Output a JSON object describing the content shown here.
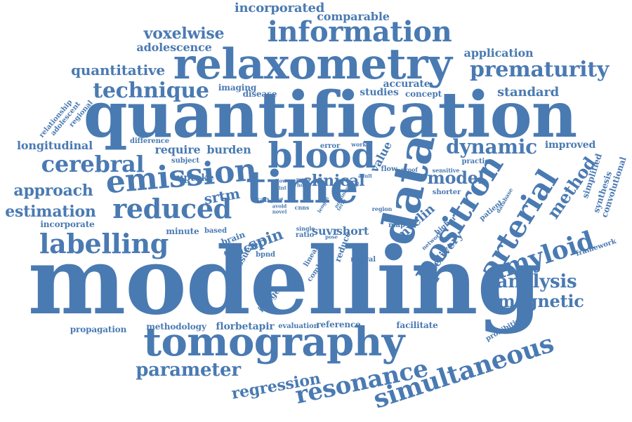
{
  "colors": {
    "word": "#4a7ab2",
    "background": "#ffffff"
  },
  "words": [
    {
      "key": "modelling",
      "text": "modelling"
    },
    {
      "key": "quantification",
      "text": "quantification"
    },
    {
      "key": "relaxometry",
      "text": "relaxometry"
    },
    {
      "key": "tomography",
      "text": "tomography"
    },
    {
      "key": "data",
      "text": "data"
    },
    {
      "key": "time",
      "text": "time"
    },
    {
      "key": "information",
      "text": "information"
    },
    {
      "key": "emission",
      "text": "emission"
    },
    {
      "key": "blood",
      "text": "blood"
    },
    {
      "key": "reduced",
      "text": "reduced"
    },
    {
      "key": "positron",
      "text": "positron"
    },
    {
      "key": "arterial",
      "text": "arterial"
    },
    {
      "key": "simultaneous",
      "text": "simultaneous"
    },
    {
      "key": "amyloid",
      "text": "amyloid"
    },
    {
      "key": "prematurity",
      "text": "prematurity"
    },
    {
      "key": "labelling",
      "text": "labelling"
    },
    {
      "key": "resonance",
      "text": "resonance"
    },
    {
      "key": "cerebral",
      "text": "cerebral"
    },
    {
      "key": "technique",
      "text": "technique"
    },
    {
      "key": "dynamic",
      "text": "dynamic"
    },
    {
      "key": "analysis",
      "text": "analysis"
    },
    {
      "key": "magnetic",
      "text": "magnetic"
    },
    {
      "key": "parameter",
      "text": "parameter"
    },
    {
      "key": "regression",
      "text": "regression"
    },
    {
      "key": "method",
      "text": "method"
    },
    {
      "key": "model",
      "text": "model"
    },
    {
      "key": "approach",
      "text": "approach"
    },
    {
      "key": "estimation",
      "text": "estimation"
    },
    {
      "key": "voxelwise",
      "text": "voxelwise"
    },
    {
      "key": "quantitative",
      "text": "quantitative"
    },
    {
      "key": "clinical",
      "text": "clinical"
    },
    {
      "key": "standard",
      "text": "standard"
    },
    {
      "key": "incorporated",
      "text": "incorporated"
    },
    {
      "key": "comparable",
      "text": "comparable"
    },
    {
      "key": "adolescence",
      "text": "adolescence"
    },
    {
      "key": "application",
      "text": "application"
    },
    {
      "key": "longitudinal",
      "text": "longitudinal"
    },
    {
      "key": "spin",
      "text": "spin"
    },
    {
      "key": "srtm",
      "text": "srtm"
    },
    {
      "key": "myelin",
      "text": "myelin"
    },
    {
      "key": "delivery",
      "text": "delivery"
    },
    {
      "key": "tracer",
      "text": "tracer"
    },
    {
      "key": "short",
      "text": "short"
    },
    {
      "key": "suvr",
      "text": "suvr"
    },
    {
      "key": "require",
      "text": "require"
    },
    {
      "key": "burden",
      "text": "burden"
    },
    {
      "key": "uptake",
      "text": "uptake"
    },
    {
      "key": "value",
      "text": "value"
    },
    {
      "key": "improved",
      "text": "improved"
    },
    {
      "key": "accurate",
      "text": "accurate"
    },
    {
      "key": "studies",
      "text": "studies"
    },
    {
      "key": "concept",
      "text": "concept"
    },
    {
      "key": "imaging",
      "text": "imaging"
    },
    {
      "key": "disease",
      "text": "disease"
    },
    {
      "key": "florbetapir",
      "text": "florbetapir"
    },
    {
      "key": "methodology",
      "text": "methodology"
    },
    {
      "key": "reference",
      "text": "reference"
    },
    {
      "key": "facilitate",
      "text": "facilitate"
    },
    {
      "key": "propagation",
      "text": "propagation"
    },
    {
      "key": "evaluation",
      "text": "evaluation"
    },
    {
      "key": "incorporate",
      "text": "incorporate"
    },
    {
      "key": "minute",
      "text": "minute"
    },
    {
      "key": "based",
      "text": "based"
    },
    {
      "key": "brain",
      "text": "brain"
    },
    {
      "key": "tissue",
      "text": "tissue"
    },
    {
      "key": "bpnd",
      "text": "bpnd"
    },
    {
      "key": "image",
      "text": "image"
    },
    {
      "key": "reduce",
      "text": "reduce"
    },
    {
      "key": "neural",
      "text": "neural"
    },
    {
      "key": "map",
      "text": "map"
    },
    {
      "key": "linear",
      "text": "linear"
    },
    {
      "key": "combine",
      "text": "combine"
    },
    {
      "key": "ratio",
      "text": "ratio"
    },
    {
      "key": "single",
      "text": "single"
    },
    {
      "key": "scan",
      "text": "scan"
    },
    {
      "key": "cnns",
      "text": "cnns"
    },
    {
      "key": "error",
      "text": "error"
    },
    {
      "key": "flow",
      "text": "flow"
    },
    {
      "key": "work",
      "text": "work"
    },
    {
      "key": "proof",
      "text": "proof"
    },
    {
      "key": "practice",
      "text": "practice"
    },
    {
      "key": "sensitive",
      "text": "sensitive"
    },
    {
      "key": "shorter",
      "text": "shorter"
    },
    {
      "key": "study",
      "text": "study"
    },
    {
      "key": "region",
      "text": "region"
    },
    {
      "key": "patient",
      "text": "patient"
    },
    {
      "key": "database",
      "text": "database"
    },
    {
      "key": "network",
      "text": "network"
    },
    {
      "key": "higher",
      "text": "higher"
    },
    {
      "key": "simplified",
      "text": "simplified"
    },
    {
      "key": "synthesis",
      "text": "synthesis"
    },
    {
      "key": "convolutional",
      "text": "convolutional"
    },
    {
      "key": "framework",
      "text": "framework"
    },
    {
      "key": "prohibitive",
      "text": "prohibitive"
    },
    {
      "key": "relationship",
      "text": "relationship"
    },
    {
      "key": "adolescent",
      "text": "adolescent"
    },
    {
      "key": "regional",
      "text": "regional"
    },
    {
      "key": "difference",
      "text": "difference"
    },
    {
      "key": "subject",
      "text": "subject"
    },
    {
      "key": "allow",
      "text": "allow"
    },
    {
      "key": "joint",
      "text": "joint"
    },
    {
      "key": "show",
      "text": "show"
    },
    {
      "key": "avoid",
      "text": "avoid"
    },
    {
      "key": "novel",
      "text": "novel"
    },
    {
      "key": "many",
      "text": "many"
    },
    {
      "key": "hour",
      "text": "hour"
    },
    {
      "key": "adult",
      "text": "adult"
    },
    {
      "key": "vivo",
      "text": "vivo"
    },
    {
      "key": "pose",
      "text": "pose"
    },
    {
      "key": "length",
      "text": "length"
    },
    {
      "key": "term",
      "text": "term"
    },
    {
      "key": "nonlinear",
      "text": "nonlinear"
    }
  ]
}
